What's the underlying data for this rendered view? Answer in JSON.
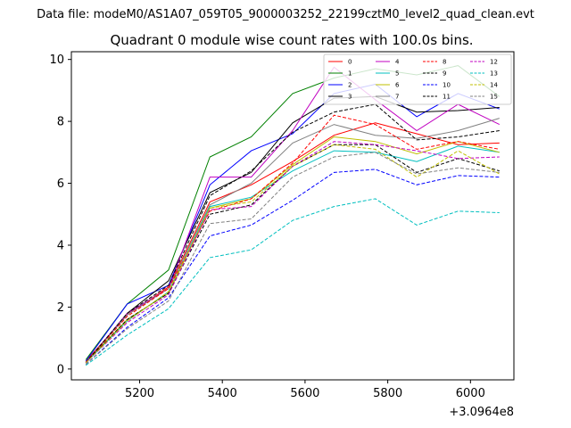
{
  "figure": {
    "suptitle": "Data file: modeM0/AS1A07_059T05_9000003252_22199cztM0_level2_quad_clean.evt",
    "offset_label": "+3.0964e8"
  },
  "chart_data": {
    "type": "line",
    "title": "Quadrant 0 module wise count rates with 100.0s bins.",
    "xlabel": "",
    "ylabel": "",
    "x": [
      5070,
      5170,
      5270,
      5370,
      5470,
      5570,
      5670,
      5770,
      5870,
      5970,
      6070
    ],
    "xlim": [
      5035,
      6105
    ],
    "ylim": [
      -0.35,
      10.25
    ],
    "xticks": [
      5200,
      5400,
      5600,
      5800,
      6000
    ],
    "xtick_labels": [
      "5200",
      "5400",
      "5600",
      "5800",
      "6000"
    ],
    "yticks": [
      0,
      2,
      4,
      6,
      8,
      10
    ],
    "ytick_labels": [
      "0",
      "2",
      "4",
      "6",
      "8",
      "10"
    ],
    "grid": false,
    "legend_position": "top-right",
    "legend_columns": 4,
    "series": [
      {
        "name": "0",
        "color": "#ff0000",
        "dash": "solid",
        "values": [
          0.25,
          1.75,
          2.65,
          5.4,
          5.95,
          6.7,
          7.55,
          7.95,
          7.6,
          7.25,
          7.3
        ]
      },
      {
        "name": "1",
        "color": "#008000",
        "dash": "solid",
        "values": [
          0.3,
          2.1,
          3.2,
          6.85,
          7.5,
          8.9,
          9.4,
          9.7,
          9.5,
          9.8,
          8.8
        ]
      },
      {
        "name": "2",
        "color": "#0000ff",
        "dash": "solid",
        "values": [
          0.25,
          2.1,
          2.7,
          5.95,
          7.05,
          7.6,
          8.9,
          9.2,
          8.15,
          8.9,
          8.4
        ]
      },
      {
        "name": "3",
        "color": "#000000",
        "dash": "solid",
        "values": [
          0.2,
          1.8,
          2.85,
          5.7,
          6.35,
          7.95,
          8.75,
          8.8,
          8.3,
          8.35,
          8.45
        ]
      },
      {
        "name": "4",
        "color": "#c000c0",
        "dash": "solid",
        "values": [
          0.2,
          1.8,
          2.6,
          6.2,
          6.2,
          7.7,
          9.75,
          8.7,
          7.7,
          8.55,
          7.9
        ]
      },
      {
        "name": "5",
        "color": "#00bfbf",
        "dash": "solid",
        "values": [
          0.2,
          1.55,
          2.5,
          5.25,
          5.55,
          6.4,
          7.05,
          7.0,
          6.7,
          7.2,
          7.0
        ]
      },
      {
        "name": "6",
        "color": "#bfbf00",
        "dash": "solid",
        "values": [
          0.22,
          1.6,
          2.45,
          5.2,
          5.5,
          6.6,
          7.5,
          7.35,
          6.95,
          7.35,
          7.0
        ]
      },
      {
        "name": "7",
        "color": "#808080",
        "dash": "solid",
        "values": [
          0.2,
          1.75,
          2.6,
          5.3,
          6.0,
          7.3,
          7.9,
          7.55,
          7.45,
          7.7,
          8.1
        ]
      },
      {
        "name": "8",
        "color": "#ff0000",
        "dash": "dashed",
        "values": [
          0.22,
          1.7,
          2.6,
          5.1,
          5.5,
          6.65,
          8.2,
          7.9,
          7.1,
          7.35,
          7.1
        ]
      },
      {
        "name": "9",
        "color": "#000000",
        "dash": "dashed",
        "values": [
          0.2,
          1.8,
          2.7,
          5.6,
          6.4,
          7.65,
          8.3,
          8.55,
          7.4,
          7.5,
          7.7
        ]
      },
      {
        "name": "10",
        "color": "#0000ff",
        "dash": "dashed",
        "values": [
          0.15,
          1.35,
          2.3,
          4.3,
          4.65,
          5.45,
          6.35,
          6.45,
          5.95,
          6.25,
          6.2
        ]
      },
      {
        "name": "11",
        "color": "#000000",
        "dash": "dashed",
        "values": [
          0.2,
          1.6,
          2.45,
          5.0,
          5.3,
          6.55,
          7.25,
          7.25,
          6.35,
          6.8,
          6.4
        ]
      },
      {
        "name": "12",
        "color": "#c000c0",
        "dash": "dashed",
        "values": [
          0.2,
          1.5,
          2.4,
          5.15,
          5.25,
          6.55,
          7.35,
          7.25,
          7.05,
          6.8,
          6.85
        ]
      },
      {
        "name": "13",
        "color": "#00bfbf",
        "dash": "dashed",
        "values": [
          0.12,
          1.1,
          1.95,
          3.6,
          3.85,
          4.8,
          5.25,
          5.5,
          4.65,
          5.1,
          5.05
        ]
      },
      {
        "name": "14",
        "color": "#bfbf00",
        "dash": "dashed",
        "values": [
          0.2,
          1.55,
          2.5,
          5.2,
          5.4,
          6.55,
          7.25,
          7.1,
          6.2,
          7.05,
          6.3
        ]
      },
      {
        "name": "15",
        "color": "#808080",
        "dash": "dashed",
        "values": [
          0.15,
          1.3,
          2.2,
          4.7,
          4.85,
          6.2,
          6.85,
          7.0,
          6.3,
          6.5,
          6.35
        ]
      }
    ]
  }
}
